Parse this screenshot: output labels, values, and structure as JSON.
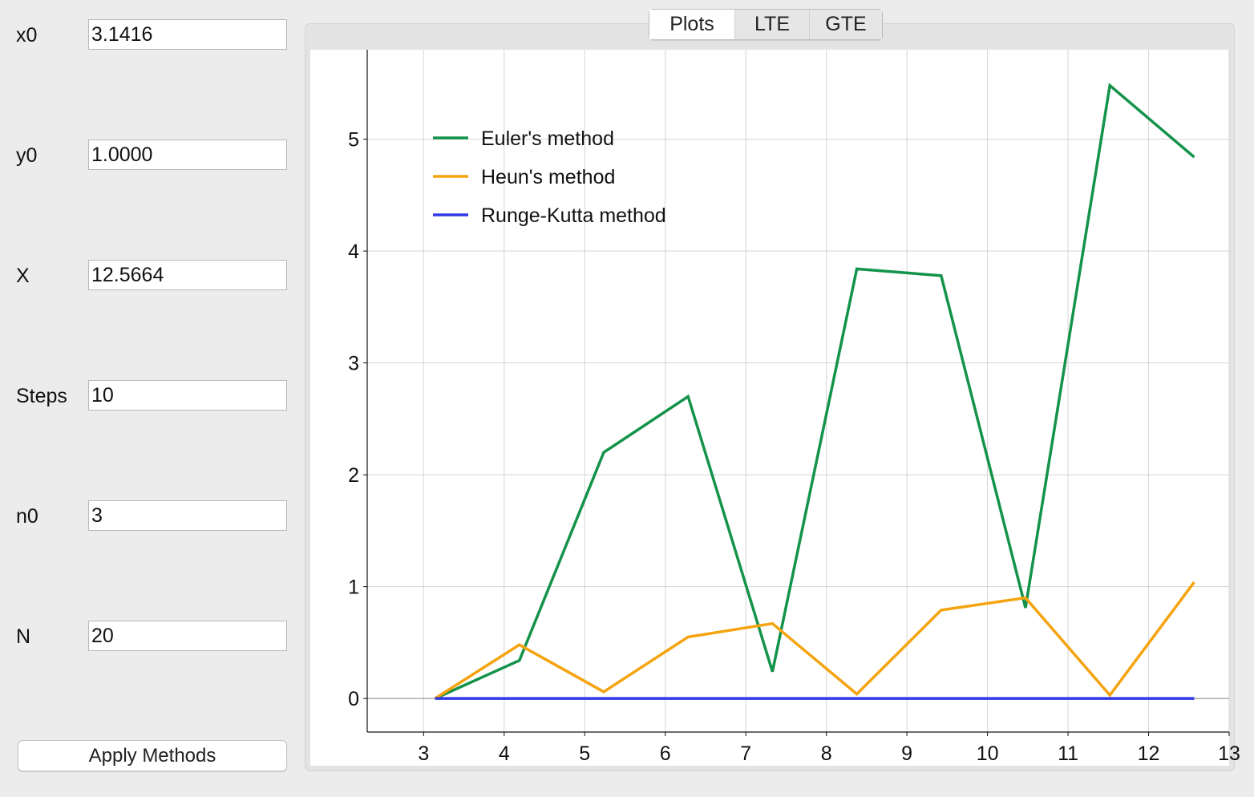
{
  "form": {
    "fields": [
      {
        "label": "x0",
        "value": "3.1416"
      },
      {
        "label": "y0",
        "value": "1.0000"
      },
      {
        "label": "X",
        "value": "12.5664"
      },
      {
        "label": "Steps",
        "value": "10"
      },
      {
        "label": "n0",
        "value": "3"
      },
      {
        "label": "N",
        "value": "20"
      }
    ],
    "apply_label": "Apply Methods"
  },
  "tabs": [
    {
      "label": "Plots",
      "selected": true
    },
    {
      "label": "LTE",
      "selected": false
    },
    {
      "label": "GTE",
      "selected": false
    }
  ],
  "chart_data": {
    "type": "line",
    "title": "",
    "xlabel": "",
    "ylabel": "",
    "xlim": [
      2.3,
      13
    ],
    "ylim": [
      -0.3,
      5.8
    ],
    "xticks": [
      3,
      4,
      5,
      6,
      7,
      8,
      9,
      10,
      11,
      12,
      13
    ],
    "yticks": [
      0,
      1,
      2,
      3,
      4,
      5
    ],
    "grid": true,
    "legend_position": "top-left",
    "x": [
      3.1416,
      4.1888,
      5.236,
      6.2832,
      7.3304,
      8.3776,
      9.4248,
      10.472,
      11.5192,
      12.5664
    ],
    "series": [
      {
        "name": "Euler's method",
        "color": "#14934a",
        "values": [
          0,
          0.34,
          2.2,
          2.7,
          0.24,
          3.84,
          3.78,
          0.81,
          5.48,
          4.84
        ]
      },
      {
        "name": "Heun's method",
        "color": "#f5a30f",
        "values": [
          0,
          0.48,
          0.06,
          0.55,
          0.67,
          0.04,
          0.79,
          0.9,
          0.03,
          1.04
        ]
      },
      {
        "name": "Runge-Kutta method",
        "color": "#3038e8",
        "values": [
          0,
          0,
          0,
          0,
          0,
          0,
          0,
          0,
          0,
          0
        ]
      }
    ]
  }
}
